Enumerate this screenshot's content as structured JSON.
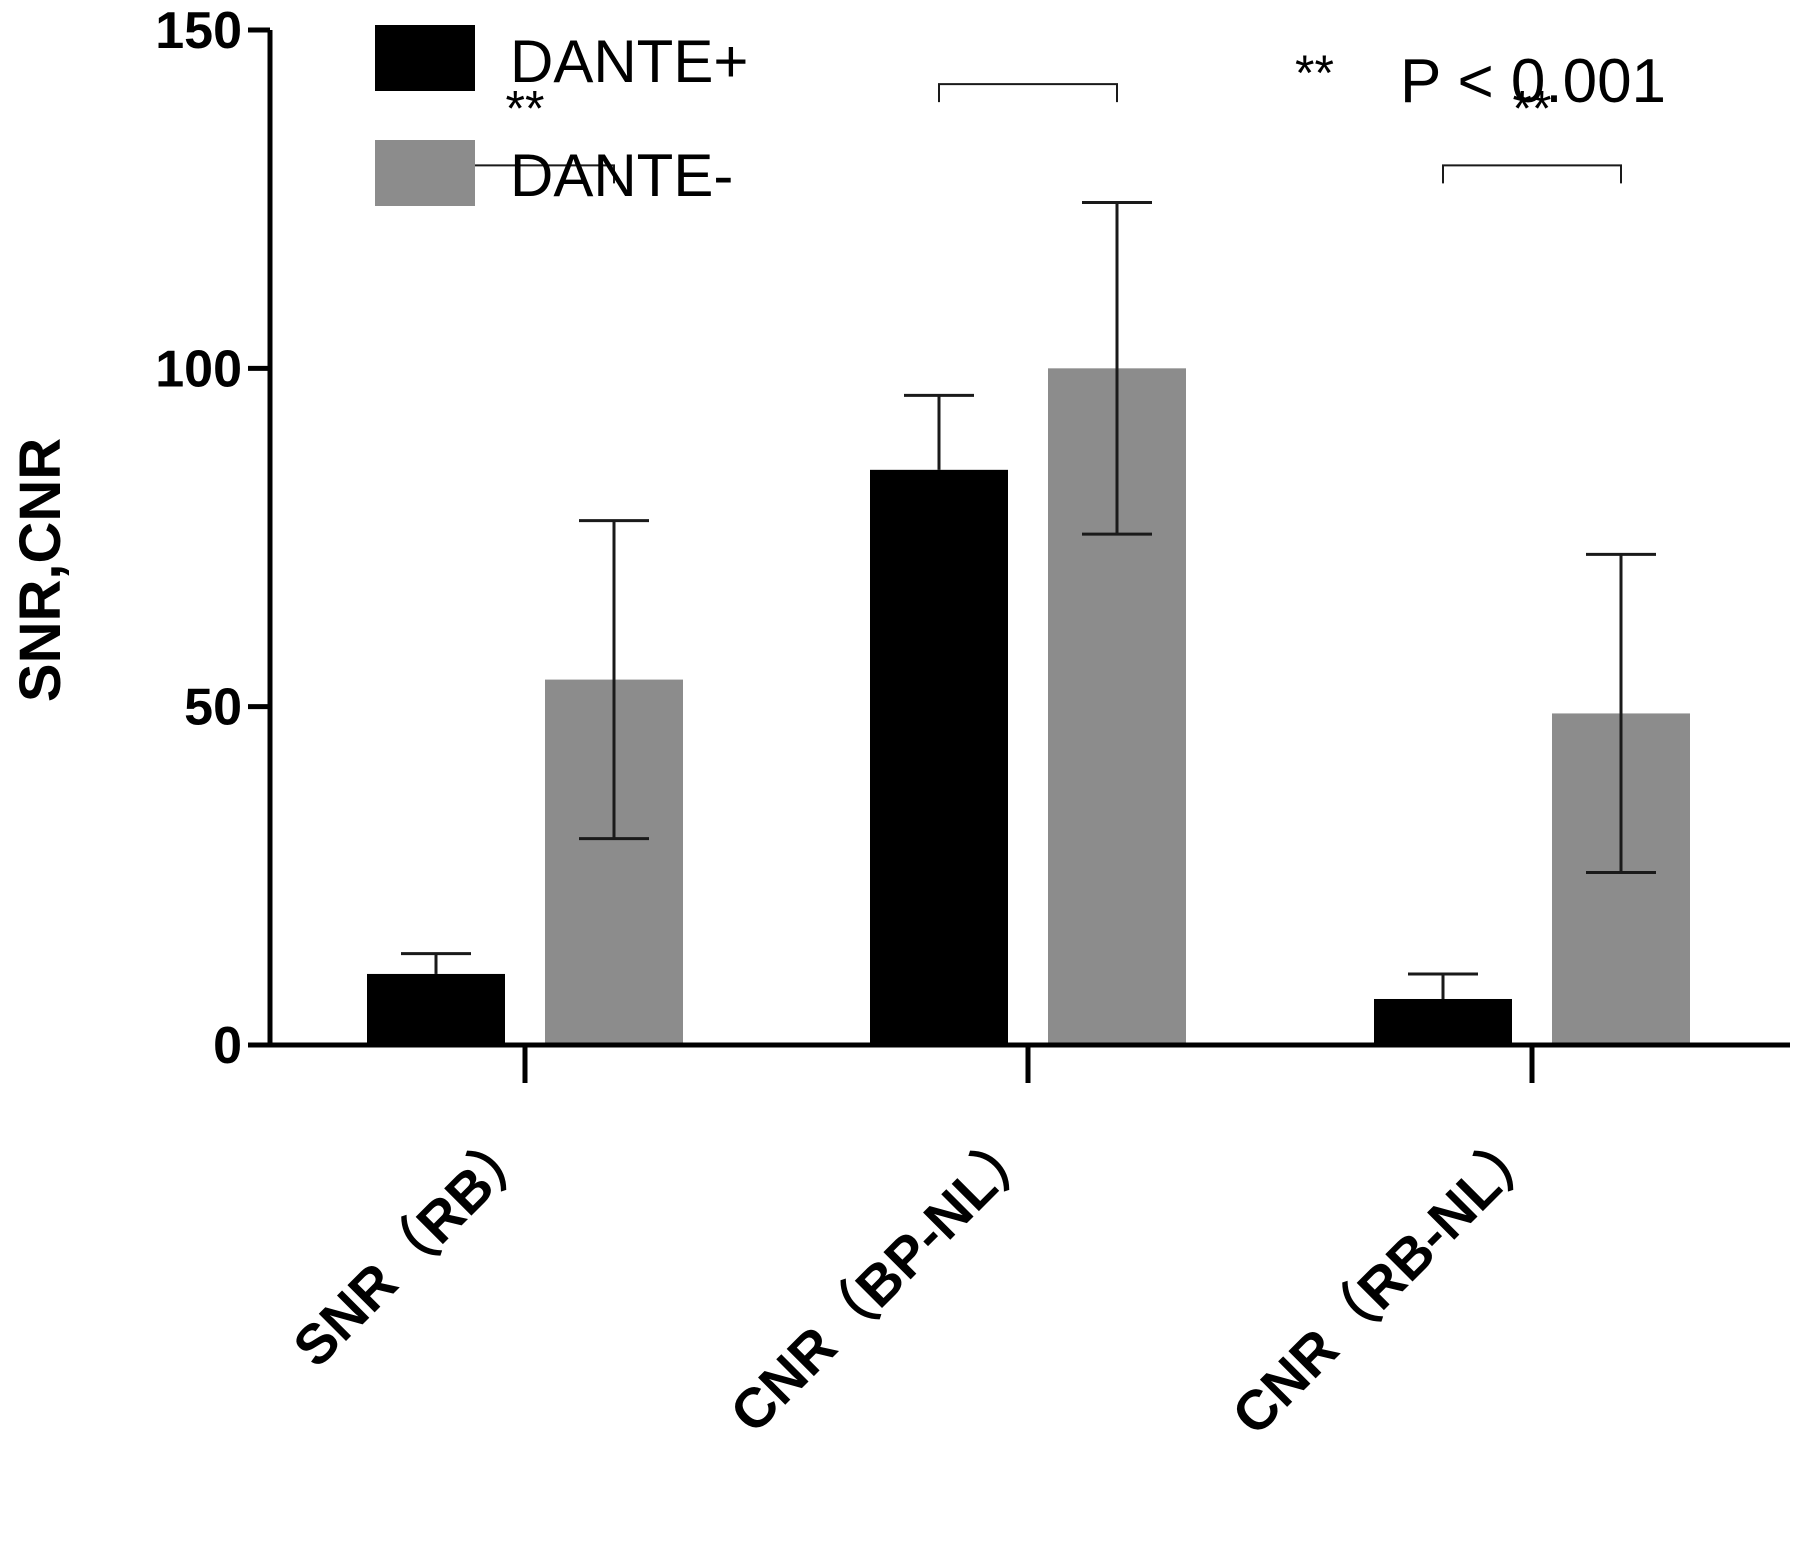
{
  "chart_data": {
    "type": "bar",
    "title": "",
    "xlabel": "",
    "ylabel": "SNR,CNR",
    "ylim": [
      0,
      150
    ],
    "yticks": [
      "0",
      "50",
      "100",
      "150"
    ],
    "categories": [
      "SNR（RB）",
      "CNR（BP-NL）",
      "CNR（RB-NL）"
    ],
    "series": [
      {
        "name": "DANTE+",
        "color": "#000000",
        "values": [
          10.5,
          85,
          6.8
        ],
        "errors": [
          3,
          11,
          3.7
        ]
      },
      {
        "name": "DANTE-",
        "color": "#8c8c8c",
        "values": [
          54,
          100,
          49
        ],
        "errors": [
          23.5,
          24.5,
          23.5
        ]
      }
    ],
    "significance": [
      {
        "category": "SNR（RB）",
        "label": "**",
        "bracket_y": 130
      },
      {
        "category": "CNR（BP-NL）",
        "label": "",
        "bracket_y": 142
      },
      {
        "category": "CNR（RB-NL）",
        "label": "**",
        "bracket_y": 130
      }
    ],
    "annotation": {
      "stars": "**",
      "text": "P < 0.001"
    },
    "legend_position": "top-left"
  }
}
